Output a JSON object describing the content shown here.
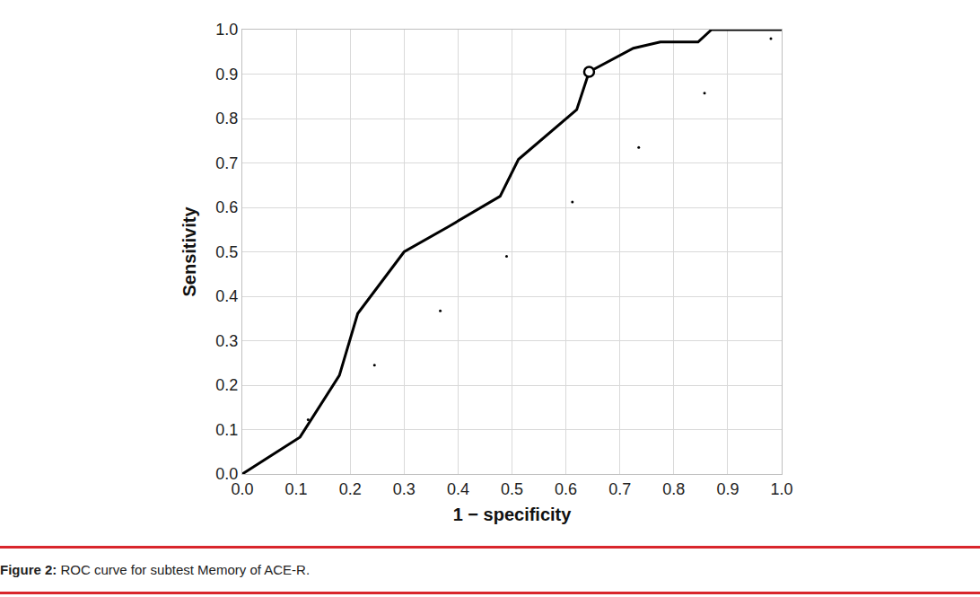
{
  "chart_data": {
    "type": "line",
    "xlabel": "1 − specificity",
    "ylabel": "Sensitivity",
    "caption": {
      "label": "Figure 2:",
      "text": "ROC curve for subtest Memory of ACE-R."
    },
    "xlim": [
      0,
      1
    ],
    "ylim": [
      0,
      1
    ],
    "xticks": [
      {
        "value": 0,
        "label": "0.0"
      },
      0.1,
      0.2,
      0.3,
      0.4,
      0.5,
      0.6,
      0.7,
      0.8,
      0.9,
      {
        "value": 1,
        "label": "1.0"
      }
    ],
    "yticks": [
      {
        "value": 0,
        "label": "0.0"
      },
      0.1,
      0.2,
      0.3,
      0.4,
      0.5,
      0.6,
      0.7,
      0.8,
      0.9,
      {
        "value": 1,
        "label": "1.0"
      }
    ],
    "grid": true,
    "series": [
      {
        "type": "line",
        "color": "#000000",
        "x": [
          0,
          0.107,
          0.18,
          0.214,
          0.3,
          0.38,
          0.478,
          0.512,
          0.62,
          0.643,
          0.725,
          0.775,
          0.845,
          0.87,
          1.0
        ],
        "values": [
          0,
          0.083,
          0.222,
          0.361,
          0.5,
          0.555,
          0.625,
          0.708,
          0.82,
          0.905,
          0.958,
          0.972,
          0.972,
          1.0,
          1.0
        ]
      },
      {
        "type": "scatter",
        "marker": "circle",
        "color": "#000000",
        "x": [
          0.643
        ],
        "values": [
          0.905
        ]
      },
      {
        "type": "scatter",
        "marker": "dot",
        "color": "#000000",
        "x": [
          0.122,
          0.245,
          0.367,
          0.49,
          0.612,
          0.735,
          0.857,
          0.98
        ],
        "values": [
          0.122,
          0.245,
          0.367,
          0.49,
          0.612,
          0.735,
          0.857,
          0.98
        ]
      }
    ]
  }
}
